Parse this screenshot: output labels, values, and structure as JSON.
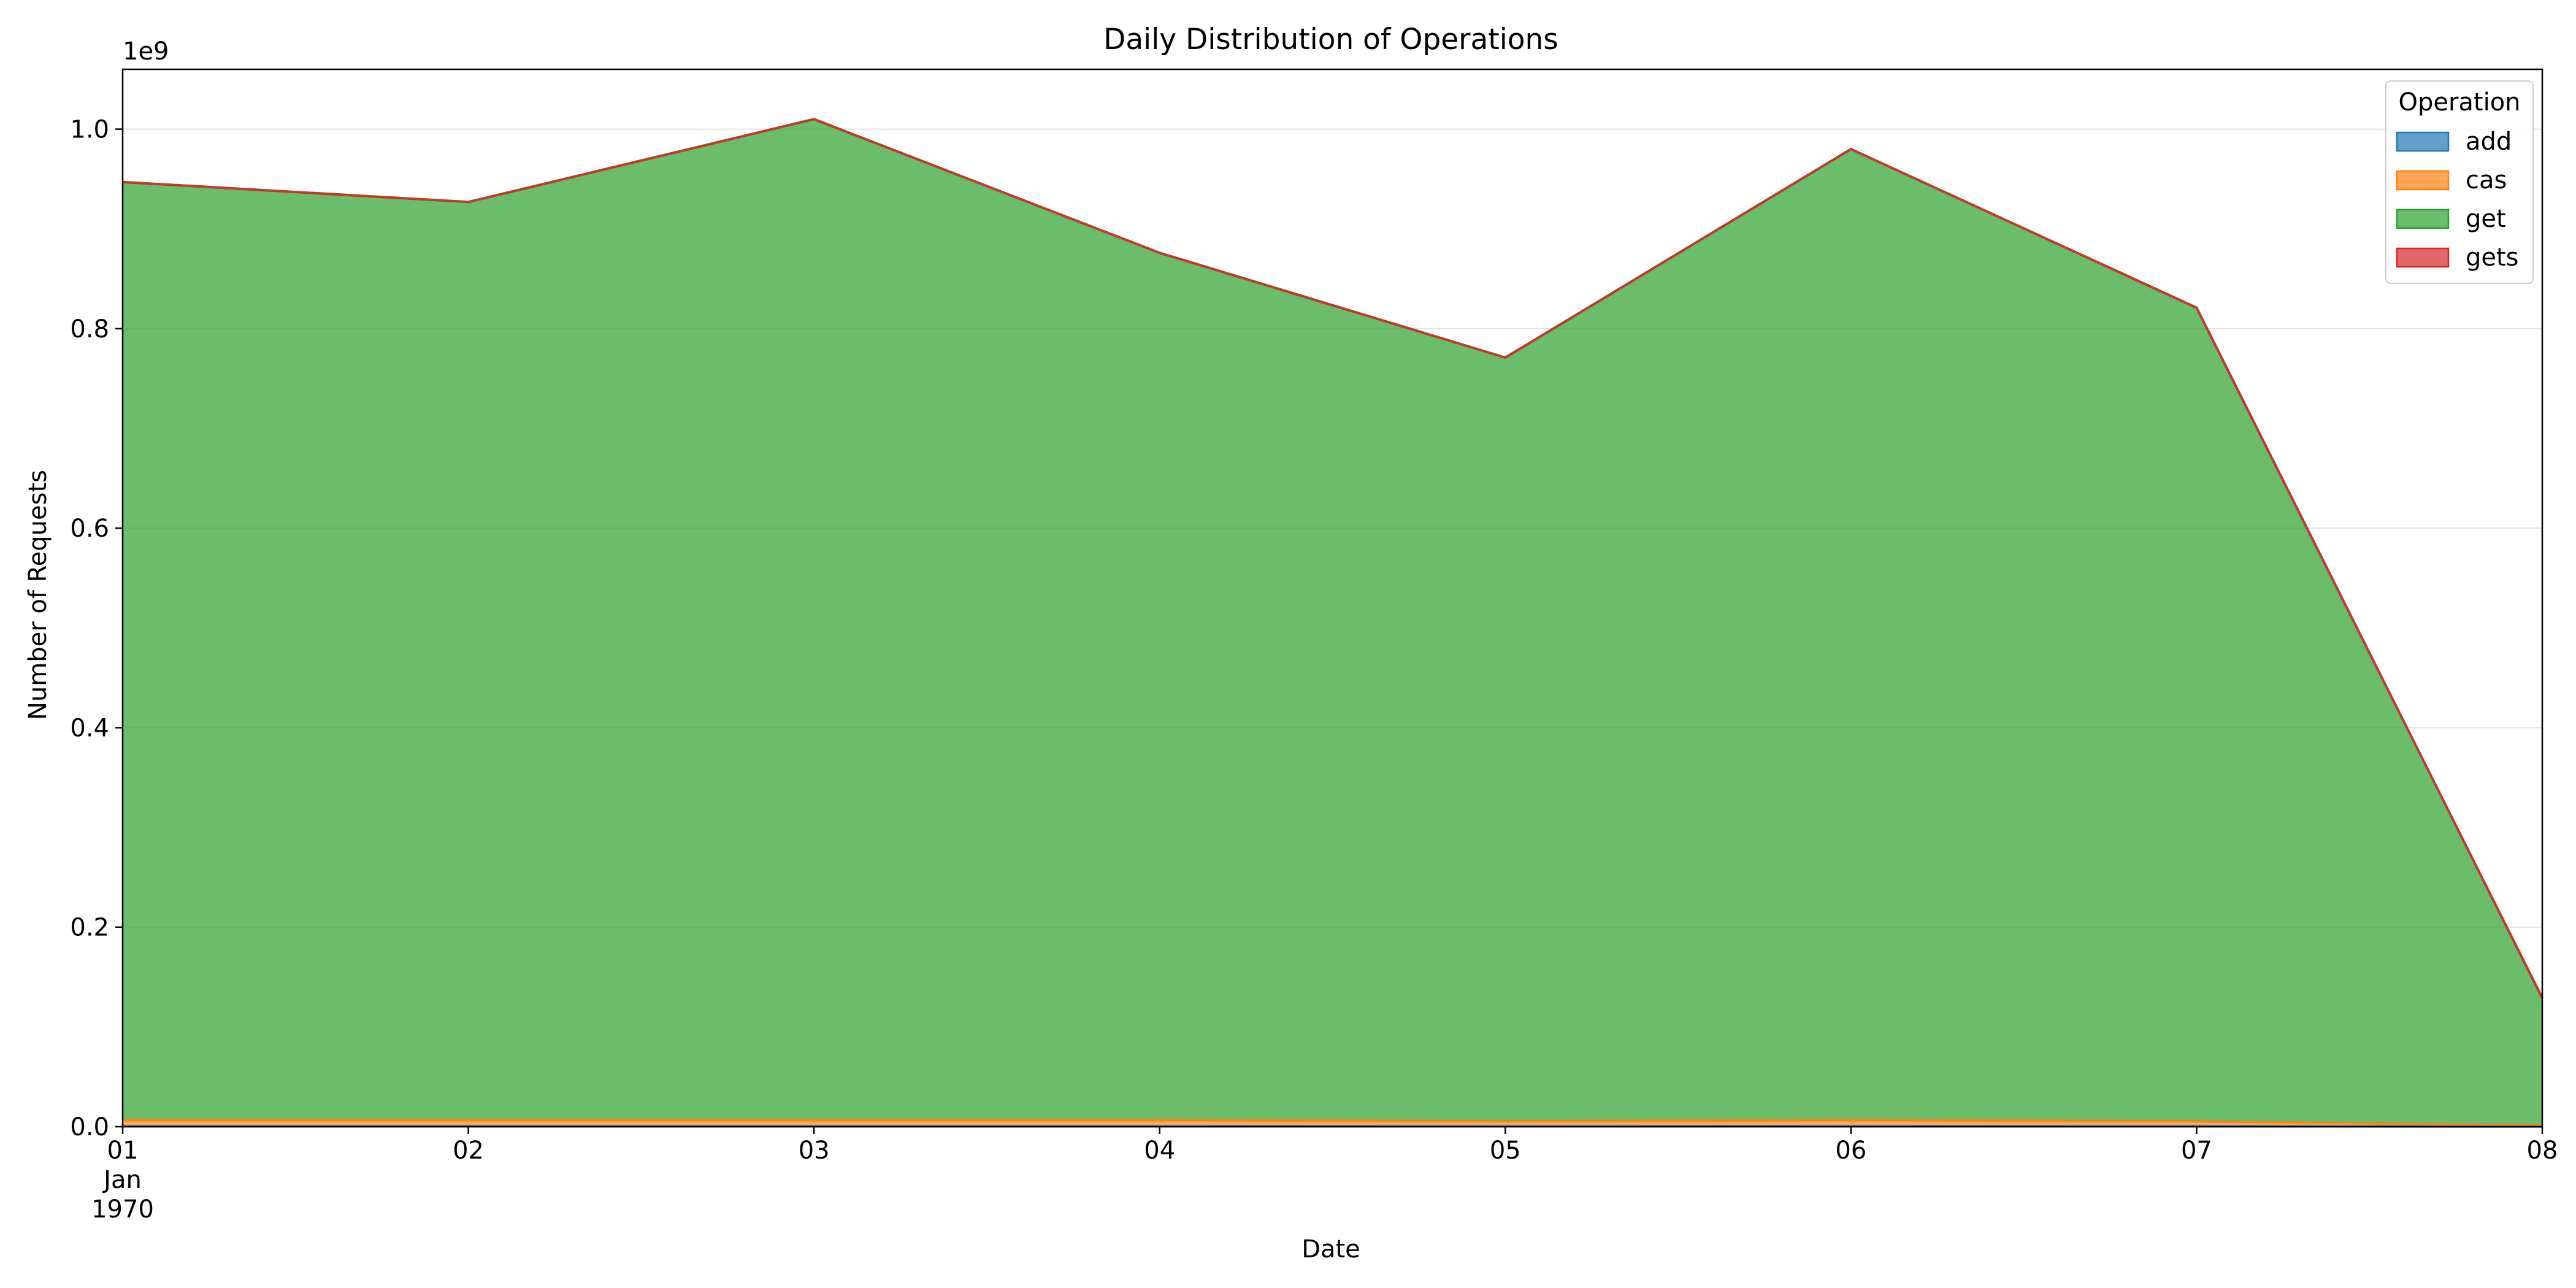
{
  "chart_data": {
    "type": "area",
    "stacked": true,
    "title": "Daily Distribution of Operations",
    "xlabel": "Date",
    "ylabel": "Number of Requests",
    "y_offset_label": "1e9",
    "x": [
      "1970-01-01",
      "1970-01-02",
      "1970-01-03",
      "1970-01-04",
      "1970-01-05",
      "1970-01-06",
      "1970-01-07",
      "1970-01-08"
    ],
    "x_tick_labels": [
      [
        "01",
        "Jan",
        "1970"
      ],
      [
        "02"
      ],
      [
        "03"
      ],
      [
        "04"
      ],
      [
        "05"
      ],
      [
        "06"
      ],
      [
        "07"
      ],
      [
        "08"
      ]
    ],
    "y_ticks": [
      0.0,
      0.2,
      0.4,
      0.6,
      0.8,
      1.0
    ],
    "y_tick_labels": [
      "0.0",
      "0.2",
      "0.4",
      "0.6",
      "0.8",
      "1.0"
    ],
    "y_unit_multiplier": 1000000000,
    "ylim": [
      0,
      1.06
    ],
    "grid": "y",
    "legend": {
      "title": "Operation",
      "position": "top-right"
    },
    "series": [
      {
        "name": "add",
        "color": "#1f77b4",
        "values": [
          0.0005,
          0.0005,
          0.0005,
          0.0005,
          0.0004,
          0.0005,
          0.0004,
          0.0001
        ]
      },
      {
        "name": "cas",
        "color": "#ff7f0e",
        "values": [
          0.006,
          0.006,
          0.006,
          0.006,
          0.005,
          0.006,
          0.005,
          0.001
        ]
      },
      {
        "name": "get",
        "color": "#2ca02c",
        "values": [
          0.9405,
          0.9205,
          1.0035,
          0.8695,
          0.7656,
          0.9735,
          0.8156,
          0.1279
        ]
      },
      {
        "name": "gets",
        "color": "#d62728",
        "values": [
          0.0,
          0.0,
          0.0,
          0.0,
          0.0,
          0.0,
          0.0,
          0.0
        ]
      }
    ]
  }
}
